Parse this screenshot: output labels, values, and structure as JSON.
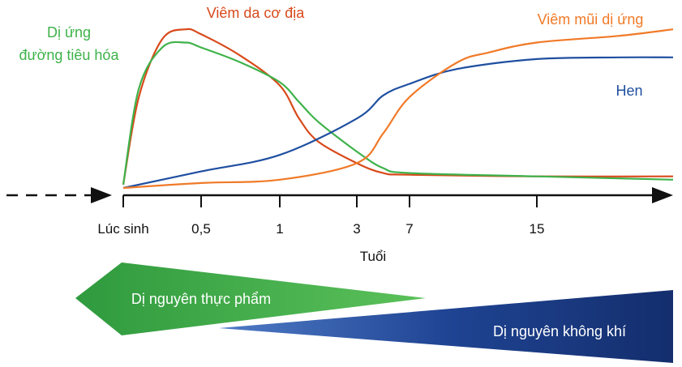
{
  "chart_data": {
    "type": "line",
    "xlabel": "Tuổi",
    "ylabel": "",
    "x_ticks": [
      "Lúc sinh",
      "0,5",
      "1",
      "3",
      "7",
      "15"
    ],
    "series": [
      {
        "name": "Viêm da cơ địa",
        "color": "#d84a1b",
        "x": [
          0,
          0.1,
          0.25,
          0.4,
          0.5,
          0.75,
          1,
          1.5,
          2,
          3,
          5,
          7,
          15,
          20
        ],
        "y": [
          2,
          55,
          90,
          96,
          93,
          80,
          62,
          42,
          28,
          15,
          9,
          8,
          7,
          7
        ]
      },
      {
        "name": "Dị ứng đường tiêu hóa",
        "color": "#3eb24a",
        "x": [
          0,
          0.1,
          0.25,
          0.4,
          0.5,
          0.75,
          1,
          1.5,
          2,
          3,
          5,
          7,
          15,
          20
        ],
        "y": [
          2,
          60,
          85,
          88,
          85,
          76,
          64,
          52,
          40,
          22,
          12,
          9,
          7,
          5
        ]
      },
      {
        "name": "Hen",
        "color": "#1f4fa0",
        "x": [
          0,
          0.5,
          1,
          3,
          5,
          7,
          10,
          15,
          18,
          20
        ],
        "y": [
          0,
          10,
          20,
          42,
          56,
          63,
          72,
          78,
          79,
          79
        ]
      },
      {
        "name": "Viêm mũi dị ứng",
        "color": "#f07a28",
        "x": [
          0,
          0.5,
          1,
          3,
          5,
          7,
          10,
          12,
          15,
          18,
          20
        ],
        "y": [
          0,
          3,
          5,
          15,
          33,
          55,
          76,
          82,
          88,
          92,
          96
        ]
      }
    ],
    "bands": [
      {
        "label": "Dị nguyên thực phẩm",
        "color": "#3fa24a"
      },
      {
        "label": "Dị nguyên không khí",
        "color": "#1f3f85"
      }
    ]
  }
}
